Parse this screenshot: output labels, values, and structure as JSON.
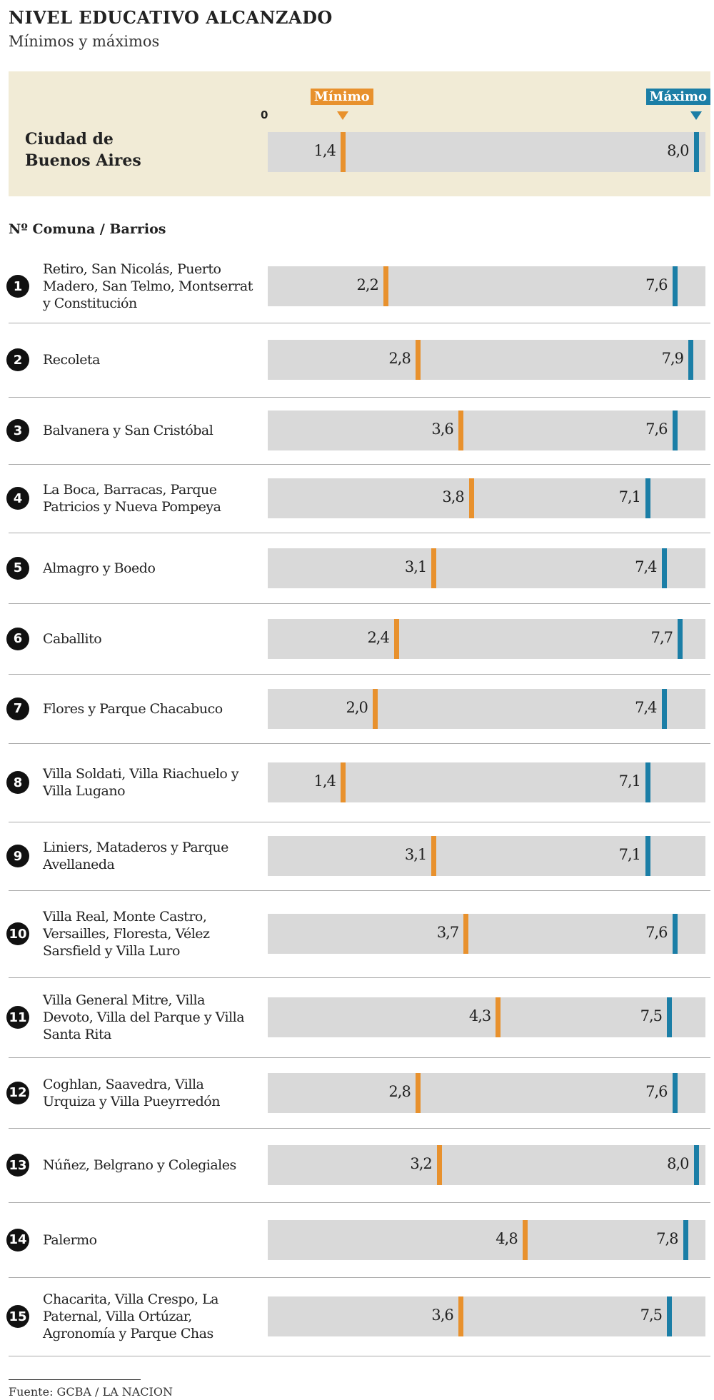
{
  "chart_data": {
    "type": "range",
    "title": "NIVEL EDUCATIVO ALCANZADO",
    "subtitle": "Mínimos y máximos",
    "xlim": [
      0,
      8.1
    ],
    "xticks": [
      0
    ],
    "city": {
      "name": "Ciudad de Buenos Aires",
      "values": [
        1.4,
        8.0
      ],
      "value_labels": [
        "1,4",
        "8,0"
      ]
    },
    "column_header": "Nº Comuna / Barrios",
    "numbers": [
      1,
      2,
      3,
      4,
      5,
      6,
      7,
      8,
      9,
      10,
      11,
      12,
      13,
      14,
      15
    ],
    "categories": [
      "Retiro, San Nicolás, Puerto Madero, San Telmo, Montserrat y Constitución",
      "Recoleta",
      "Balvanera y San Cristóbal",
      "La Boca, Barracas, Parque Patricios y Nueva Pompeya",
      "Almagro y Boedo",
      "Caballito",
      "Flores y Parque Chacabuco",
      "Villa Soldati, Villa Riachuelo y Villa Lugano",
      "Liniers, Mataderos y Parque Avellaneda",
      "Villa Real, Monte Castro, Versailles, Floresta, Vélez Sarsfield y Villa Luro",
      "Villa General Mitre, Villa Devoto, Villa del Parque y Villa Santa Rita",
      "Coghlan, Saavedra, Villa Urquiza y Villa Pueyrredón",
      "Núñez, Belgrano y Colegiales",
      "Palermo",
      "Chacarita, Villa Crespo, La Paternal, Villa Ortúzar, Agronomía y Parque Chas"
    ],
    "series": [
      {
        "name": "Mínimo",
        "color": "#e8912d",
        "values": [
          2.2,
          2.8,
          3.6,
          3.8,
          3.1,
          2.4,
          2.0,
          1.4,
          3.1,
          3.7,
          4.3,
          2.8,
          3.2,
          4.8,
          3.6
        ],
        "value_labels": [
          "2,2",
          "2,8",
          "3,6",
          "3,8",
          "3,1",
          "2,4",
          "2,0",
          "1,4",
          "3,1",
          "3,7",
          "4,3",
          "2,8",
          "3,2",
          "4,8",
          "3,6"
        ]
      },
      {
        "name": "Máximo",
        "color": "#1b7ea6",
        "values": [
          7.6,
          7.9,
          7.6,
          7.1,
          7.4,
          7.7,
          7.4,
          7.1,
          7.1,
          7.6,
          7.5,
          7.6,
          8.0,
          7.8,
          7.5
        ],
        "value_labels": [
          "7,6",
          "7,9",
          "7,6",
          "7,1",
          "7,4",
          "7,7",
          "7,4",
          "7,1",
          "7,1",
          "7,6",
          "7,5",
          "7,6",
          "8,0",
          "7,8",
          "7,5"
        ]
      }
    ],
    "source": "Fuente: GCBA / LA NACION"
  }
}
